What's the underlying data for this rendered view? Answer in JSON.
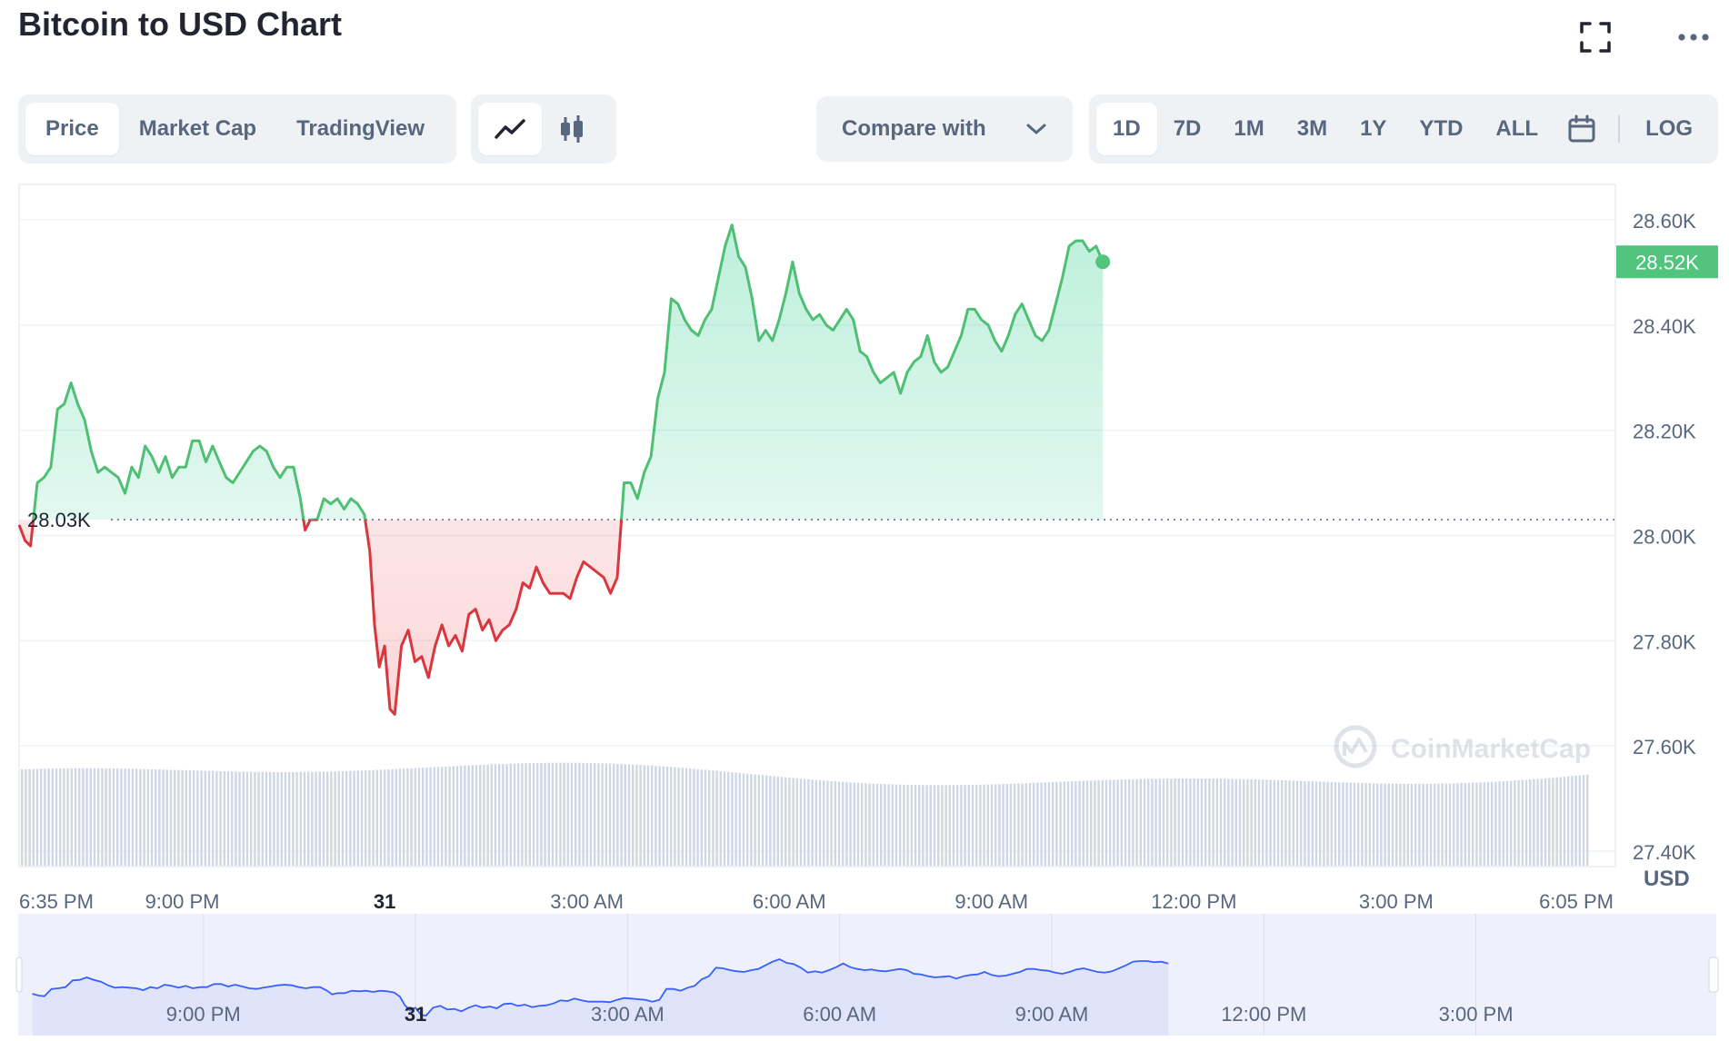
{
  "header": {
    "title": "Bitcoin to USD Chart"
  },
  "icons": {
    "fullscreen": "fullscreen-icon",
    "more": "more-icon",
    "calendar": "calendar-icon",
    "line": "line-chart-icon",
    "candle": "candlestick-icon",
    "chevron": "chevron-down-icon"
  },
  "tabs": [
    {
      "label": "Price",
      "active": true
    },
    {
      "label": "Market Cap",
      "active": false
    },
    {
      "label": "TradingView",
      "active": false
    }
  ],
  "compare": {
    "label": "Compare with"
  },
  "ranges": [
    {
      "label": "1D",
      "active": true
    },
    {
      "label": "7D",
      "active": false
    },
    {
      "label": "1M",
      "active": false
    },
    {
      "label": "3M",
      "active": false
    },
    {
      "label": "1Y",
      "active": false
    },
    {
      "label": "YTD",
      "active": false
    },
    {
      "label": "ALL",
      "active": false
    }
  ],
  "log_label": "LOG",
  "watermark": "CoinMarketCap",
  "colors": {
    "up": "#16c784",
    "up_line": "#4fbf73",
    "down": "#ea3943",
    "down_line": "#d9363e",
    "volume": "#cfd6e4",
    "nav_fill": "#dfe4fb",
    "nav_line": "#3861fb",
    "last_badge": "#52c47e"
  },
  "chart_data": {
    "type": "line",
    "currency": "USD",
    "reference_price": 28.03,
    "reference_label": "28.03K",
    "last_price": 28.52,
    "last_label": "28.52K",
    "ylim": [
      27.4,
      28.7
    ],
    "yticks": [
      {
        "value": 28.6,
        "label": "28.60K"
      },
      {
        "value": 28.4,
        "label": "28.40K"
      },
      {
        "value": 28.2,
        "label": "28.20K"
      },
      {
        "value": 28.0,
        "label": "28.00K"
      },
      {
        "value": 27.8,
        "label": "27.80K"
      },
      {
        "value": 27.6,
        "label": "27.60K"
      },
      {
        "value": 27.4,
        "label": "27.40K"
      }
    ],
    "ylabel": "USD",
    "x_hours_range": [
      18.58,
      42.25
    ],
    "xticks": [
      {
        "hour": 18.58,
        "label": "6:35 PM",
        "bold": false
      },
      {
        "hour": 21,
        "label": "9:00 PM",
        "bold": false
      },
      {
        "hour": 24,
        "label": "31",
        "bold": true
      },
      {
        "hour": 27,
        "label": "3:00 AM",
        "bold": false
      },
      {
        "hour": 30,
        "label": "6:00 AM",
        "bold": false
      },
      {
        "hour": 33,
        "label": "9:00 AM",
        "bold": false
      },
      {
        "hour": 36,
        "label": "12:00 PM",
        "bold": false
      },
      {
        "hour": 39,
        "label": "3:00 PM",
        "bold": false
      },
      {
        "hour": 42.08,
        "label": "6:05 PM",
        "bold": false
      }
    ],
    "series": [
      {
        "points": [
          [
            18.58,
            28.02
          ],
          [
            18.67,
            27.99
          ],
          [
            18.75,
            27.98
          ],
          [
            18.85,
            28.1
          ],
          [
            18.95,
            28.11
          ],
          [
            19.05,
            28.13
          ],
          [
            19.15,
            28.24
          ],
          [
            19.25,
            28.25
          ],
          [
            19.35,
            28.29
          ],
          [
            19.45,
            28.25
          ],
          [
            19.55,
            28.22
          ],
          [
            19.65,
            28.16
          ],
          [
            19.75,
            28.12
          ],
          [
            19.85,
            28.13
          ],
          [
            19.95,
            28.12
          ],
          [
            20.05,
            28.11
          ],
          [
            20.15,
            28.08
          ],
          [
            20.25,
            28.13
          ],
          [
            20.35,
            28.11
          ],
          [
            20.45,
            28.17
          ],
          [
            20.55,
            28.15
          ],
          [
            20.65,
            28.12
          ],
          [
            20.75,
            28.15
          ],
          [
            20.85,
            28.11
          ],
          [
            20.95,
            28.13
          ],
          [
            21.05,
            28.13
          ],
          [
            21.15,
            28.18
          ],
          [
            21.25,
            28.18
          ],
          [
            21.35,
            28.14
          ],
          [
            21.45,
            28.17
          ],
          [
            21.55,
            28.14
          ],
          [
            21.65,
            28.11
          ],
          [
            21.75,
            28.1
          ],
          [
            21.85,
            28.12
          ],
          [
            21.95,
            28.14
          ],
          [
            22.05,
            28.16
          ],
          [
            22.15,
            28.17
          ],
          [
            22.25,
            28.16
          ],
          [
            22.35,
            28.13
          ],
          [
            22.45,
            28.11
          ],
          [
            22.55,
            28.13
          ],
          [
            22.65,
            28.13
          ],
          [
            22.75,
            28.07
          ],
          [
            22.82,
            28.01
          ],
          [
            22.9,
            28.03
          ],
          [
            23.0,
            28.03
          ],
          [
            23.1,
            28.07
          ],
          [
            23.2,
            28.06
          ],
          [
            23.3,
            28.07
          ],
          [
            23.4,
            28.05
          ],
          [
            23.5,
            28.07
          ],
          [
            23.6,
            28.06
          ],
          [
            23.7,
            28.04
          ],
          [
            23.78,
            27.97
          ],
          [
            23.85,
            27.83
          ],
          [
            23.92,
            27.75
          ],
          [
            24.0,
            27.79
          ],
          [
            24.08,
            27.67
          ],
          [
            24.15,
            27.66
          ],
          [
            24.25,
            27.79
          ],
          [
            24.35,
            27.82
          ],
          [
            24.45,
            27.76
          ],
          [
            24.55,
            27.77
          ],
          [
            24.65,
            27.73
          ],
          [
            24.75,
            27.79
          ],
          [
            24.85,
            27.83
          ],
          [
            24.95,
            27.79
          ],
          [
            25.05,
            27.81
          ],
          [
            25.15,
            27.78
          ],
          [
            25.25,
            27.85
          ],
          [
            25.35,
            27.86
          ],
          [
            25.45,
            27.82
          ],
          [
            25.55,
            27.84
          ],
          [
            25.65,
            27.8
          ],
          [
            25.75,
            27.82
          ],
          [
            25.85,
            27.83
          ],
          [
            25.95,
            27.86
          ],
          [
            26.05,
            27.91
          ],
          [
            26.15,
            27.9
          ],
          [
            26.25,
            27.94
          ],
          [
            26.35,
            27.91
          ],
          [
            26.45,
            27.89
          ],
          [
            26.55,
            27.89
          ],
          [
            26.65,
            27.89
          ],
          [
            26.75,
            27.88
          ],
          [
            26.85,
            27.92
          ],
          [
            26.95,
            27.95
          ],
          [
            27.05,
            27.94
          ],
          [
            27.15,
            27.93
          ],
          [
            27.25,
            27.92
          ],
          [
            27.35,
            27.89
          ],
          [
            27.45,
            27.92
          ],
          [
            27.55,
            28.1
          ],
          [
            27.65,
            28.1
          ],
          [
            27.75,
            28.07
          ],
          [
            27.85,
            28.12
          ],
          [
            27.95,
            28.15
          ],
          [
            28.05,
            28.26
          ],
          [
            28.15,
            28.31
          ],
          [
            28.25,
            28.45
          ],
          [
            28.35,
            28.44
          ],
          [
            28.45,
            28.41
          ],
          [
            28.55,
            28.39
          ],
          [
            28.65,
            28.38
          ],
          [
            28.75,
            28.41
          ],
          [
            28.85,
            28.43
          ],
          [
            28.95,
            28.49
          ],
          [
            29.05,
            28.55
          ],
          [
            29.15,
            28.59
          ],
          [
            29.25,
            28.53
          ],
          [
            29.35,
            28.51
          ],
          [
            29.45,
            28.45
          ],
          [
            29.55,
            28.37
          ],
          [
            29.65,
            28.39
          ],
          [
            29.75,
            28.37
          ],
          [
            29.85,
            28.41
          ],
          [
            29.95,
            28.46
          ],
          [
            30.05,
            28.52
          ],
          [
            30.15,
            28.46
          ],
          [
            30.25,
            28.43
          ],
          [
            30.35,
            28.41
          ],
          [
            30.45,
            28.42
          ],
          [
            30.55,
            28.4
          ],
          [
            30.65,
            28.39
          ],
          [
            30.75,
            28.41
          ],
          [
            30.85,
            28.43
          ],
          [
            30.95,
            28.41
          ],
          [
            31.05,
            28.35
          ],
          [
            31.15,
            28.34
          ],
          [
            31.25,
            28.31
          ],
          [
            31.35,
            28.29
          ],
          [
            31.45,
            28.3
          ],
          [
            31.55,
            28.31
          ],
          [
            31.65,
            28.27
          ],
          [
            31.75,
            28.31
          ],
          [
            31.85,
            28.33
          ],
          [
            31.95,
            28.34
          ],
          [
            32.05,
            28.38
          ],
          [
            32.15,
            28.33
          ],
          [
            32.25,
            28.31
          ],
          [
            32.35,
            28.32
          ],
          [
            32.45,
            28.35
          ],
          [
            32.55,
            28.38
          ],
          [
            32.65,
            28.43
          ],
          [
            32.75,
            28.43
          ],
          [
            32.85,
            28.41
          ],
          [
            32.95,
            28.4
          ],
          [
            33.05,
            28.37
          ],
          [
            33.15,
            28.35
          ],
          [
            33.25,
            28.38
          ],
          [
            33.35,
            28.42
          ],
          [
            33.45,
            28.44
          ],
          [
            33.55,
            28.41
          ],
          [
            33.65,
            28.38
          ],
          [
            33.75,
            28.37
          ],
          [
            33.85,
            28.39
          ],
          [
            33.95,
            28.44
          ],
          [
            34.05,
            28.49
          ],
          [
            34.15,
            28.55
          ],
          [
            34.25,
            28.56
          ],
          [
            34.35,
            28.56
          ],
          [
            34.45,
            28.54
          ],
          [
            34.55,
            28.55
          ],
          [
            34.65,
            28.52
          ]
        ]
      }
    ]
  }
}
